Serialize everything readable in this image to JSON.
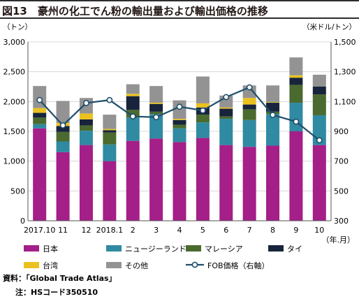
{
  "title": "図13　豪州の化工でん粉の輸出量および輸出価格の推移",
  "chart_data": {
    "type": "bar",
    "stacked": true,
    "y_left_label": "（トン）",
    "y_right_label": "（米ドル/トン）",
    "x_unit_label": "（年.月）",
    "ylim_left": [
      0,
      3000
    ],
    "ylim_right": [
      300,
      1500
    ],
    "yticks_left": [
      "0",
      "500",
      "1,000",
      "1,500",
      "2,000",
      "2,500",
      "3,000"
    ],
    "yticks_right": [
      "300",
      "500",
      "700",
      "900",
      "1,100",
      "1,300",
      "1,500"
    ],
    "categories": [
      "2017.10",
      "11",
      "12",
      "2018.1",
      "2",
      "3",
      "4",
      "5",
      "6",
      "7",
      "8",
      "9",
      "10"
    ],
    "series": [
      {
        "name": "日本",
        "color": "#a41f87",
        "values": [
          1550,
          1150,
          1270,
          1000,
          1340,
          1380,
          1320,
          1390,
          1270,
          1240,
          1260,
          1500,
          1270
        ]
      },
      {
        "name": "ニュージーランド",
        "color": "#2f8aa2",
        "values": [
          70,
          180,
          240,
          280,
          390,
          410,
          230,
          260,
          440,
          450,
          530,
          480,
          500
        ]
      },
      {
        "name": "マレーシア",
        "color": "#4b6a2f",
        "values": [
          110,
          160,
          90,
          200,
          130,
          40,
          60,
          130,
          40,
          180,
          40,
          300,
          350
        ]
      },
      {
        "name": "タイ",
        "color": "#18243b",
        "values": [
          80,
          100,
          100,
          40,
          230,
          130,
          80,
          120,
          130,
          80,
          150,
          120,
          130
        ]
      },
      {
        "name": "台湾",
        "color": "#eac11f",
        "values": [
          80,
          50,
          100,
          20,
          40,
          20,
          20,
          70,
          20,
          110,
          10,
          40,
          0
        ]
      },
      {
        "name": "その他",
        "color": "#939393",
        "values": [
          370,
          370,
          260,
          240,
          160,
          280,
          310,
          450,
          200,
          210,
          280,
          300,
          200
        ]
      }
    ],
    "line": {
      "name": "FOB価格（右軸）",
      "axis": "right",
      "color": "#1f4e6b",
      "values": [
        1110,
        940,
        1090,
        1110,
        1000,
        995,
        1065,
        1040,
        1130,
        1195,
        1010,
        965,
        840
      ]
    }
  },
  "source": "資料：「Global Trade Atlas」",
  "note": "注：HSコード350510"
}
